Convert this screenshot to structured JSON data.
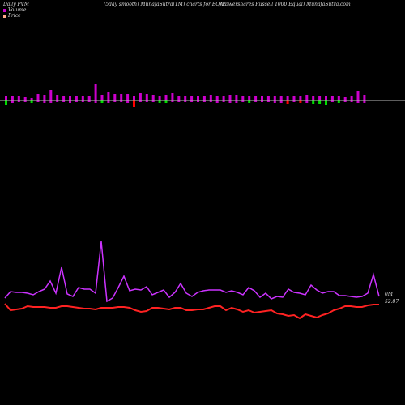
{
  "header": {
    "left": "Daily PVM",
    "center": "(5day smooth) MunafaSutra(TM) charts for EQAL",
    "right": "(Powershares Russell 1000  Equal) MunafaSutra.com"
  },
  "legend": {
    "volume": "Volume",
    "price": "Price"
  },
  "labels": {
    "volume_value": "0M",
    "price_value": "52.87"
  },
  "colors": {
    "background": "#000000",
    "volume_up": "#cc00cc",
    "volume_down": "#00dd00",
    "volume_red": "#ff0000",
    "volume_line": "#cc33ff",
    "price_line": "#ff2222",
    "baseline": "#bbbbbb",
    "legend_volume": "#cc00cc",
    "legend_price": "#ffaa88"
  },
  "chart_data": {
    "type": "bar",
    "bars": [
      {
        "up": 5,
        "down": 6,
        "color": "green"
      },
      {
        "up": 6,
        "down": 3,
        "color": "magenta"
      },
      {
        "up": 6,
        "down": 2,
        "color": "magenta"
      },
      {
        "up": 4,
        "down": 2,
        "color": "magenta"
      },
      {
        "up": 3,
        "down": 3,
        "color": "green"
      },
      {
        "up": 8,
        "down": 2,
        "color": "magenta"
      },
      {
        "up": 7,
        "down": 3,
        "color": "magenta"
      },
      {
        "up": 13,
        "down": 3,
        "color": "magenta"
      },
      {
        "up": 7,
        "down": 2,
        "color": "magenta"
      },
      {
        "up": 6,
        "down": 2,
        "color": "magenta"
      },
      {
        "up": 6,
        "down": 3,
        "color": "magenta"
      },
      {
        "up": 6,
        "down": 2,
        "color": "magenta"
      },
      {
        "up": 6,
        "down": 2,
        "color": "magenta"
      },
      {
        "up": 5,
        "down": 2,
        "color": "magenta"
      },
      {
        "up": 20,
        "down": 3,
        "color": "magenta"
      },
      {
        "up": 7,
        "down": 3,
        "color": "green"
      },
      {
        "up": 10,
        "down": 3,
        "color": "magenta"
      },
      {
        "up": 8,
        "down": 2,
        "color": "magenta"
      },
      {
        "up": 8,
        "down": 2,
        "color": "magenta"
      },
      {
        "up": 8,
        "down": 3,
        "color": "magenta"
      },
      {
        "up": 5,
        "down": 8,
        "color": "red"
      },
      {
        "up": 9,
        "down": 2,
        "color": "magenta"
      },
      {
        "up": 8,
        "down": 2,
        "color": "magenta"
      },
      {
        "up": 7,
        "down": 2,
        "color": "magenta"
      },
      {
        "up": 6,
        "down": 3,
        "color": "green"
      },
      {
        "up": 7,
        "down": 3,
        "color": "green"
      },
      {
        "up": 9,
        "down": 2,
        "color": "magenta"
      },
      {
        "up": 6,
        "down": 2,
        "color": "magenta"
      },
      {
        "up": 6,
        "down": 2,
        "color": "magenta"
      },
      {
        "up": 6,
        "down": 2,
        "color": "magenta"
      },
      {
        "up": 6,
        "down": 2,
        "color": "magenta"
      },
      {
        "up": 6,
        "down": 2,
        "color": "magenta"
      },
      {
        "up": 7,
        "down": 2,
        "color": "magenta"
      },
      {
        "up": 5,
        "down": 3,
        "color": "magenta"
      },
      {
        "up": 6,
        "down": 2,
        "color": "magenta"
      },
      {
        "up": 7,
        "down": 3,
        "color": "magenta"
      },
      {
        "up": 7,
        "down": 3,
        "color": "magenta"
      },
      {
        "up": 6,
        "down": 2,
        "color": "magenta"
      },
      {
        "up": 6,
        "down": 3,
        "color": "green"
      },
      {
        "up": 6,
        "down": 2,
        "color": "magenta"
      },
      {
        "up": 6,
        "down": 2,
        "color": "magenta"
      },
      {
        "up": 5,
        "down": 2,
        "color": "magenta"
      },
      {
        "up": 5,
        "down": 3,
        "color": "magenta"
      },
      {
        "up": 6,
        "down": 3,
        "color": "magenta"
      },
      {
        "up": 5,
        "down": 5,
        "color": "red"
      },
      {
        "up": 6,
        "down": 2,
        "color": "magenta"
      },
      {
        "up": 6,
        "down": 3,
        "color": "red"
      },
      {
        "up": 7,
        "down": 3,
        "color": "magenta"
      },
      {
        "up": 6,
        "down": 4,
        "color": "green"
      },
      {
        "up": 6,
        "down": 5,
        "color": "green"
      },
      {
        "up": 6,
        "down": 6,
        "color": "green"
      },
      {
        "up": 5,
        "down": 2,
        "color": "magenta"
      },
      {
        "up": 6,
        "down": 3,
        "color": "green"
      },
      {
        "up": 4,
        "down": 2,
        "color": "magenta"
      },
      {
        "up": 6,
        "down": 2,
        "color": "magenta"
      },
      {
        "up": 12,
        "down": 3,
        "color": "magenta"
      },
      {
        "up": 7,
        "down": 3,
        "color": "magenta"
      }
    ],
    "volume_line": [
      368,
      360,
      361,
      361,
      362,
      364,
      360,
      357,
      347,
      362,
      330,
      363,
      366,
      355,
      357,
      357,
      362,
      298,
      372,
      368,
      355,
      341,
      359,
      357,
      358,
      354,
      364,
      361,
      358,
      367,
      361,
      350,
      362,
      366,
      361,
      359,
      358,
      358,
      358,
      361,
      359,
      361,
      364,
      355,
      359,
      367,
      362,
      369,
      366,
      367,
      357,
      361,
      362,
      364,
      352,
      358,
      362,
      360,
      360,
      365,
      365,
      366,
      367,
      366,
      362,
      339,
      366
    ],
    "price_line": [
      375,
      383,
      382,
      381,
      378,
      379,
      379,
      379,
      380,
      380,
      378,
      378,
      379,
      380,
      381,
      381,
      382,
      380,
      380,
      380,
      379,
      379,
      380,
      383,
      385,
      384,
      380,
      380,
      381,
      382,
      380,
      380,
      383,
      383,
      382,
      382,
      380,
      378,
      378,
      383,
      380,
      382,
      385,
      383,
      386,
      385,
      384,
      383,
      387,
      388,
      390,
      389,
      393,
      388,
      390,
      392,
      389,
      387,
      383,
      381,
      378,
      378,
      379,
      379,
      377,
      376,
      376
    ]
  }
}
